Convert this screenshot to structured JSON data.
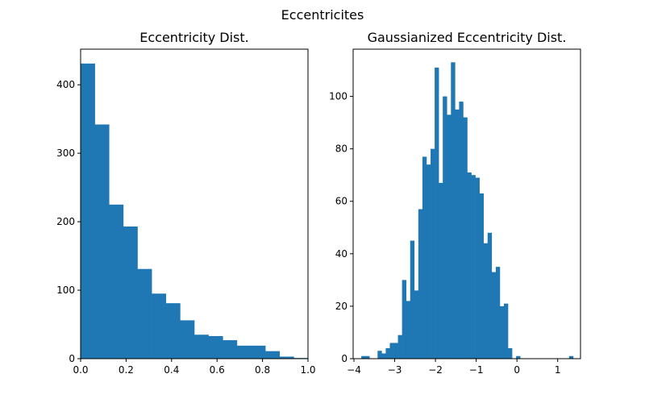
{
  "figure": {
    "suptitle": "Eccentricites"
  },
  "colors": {
    "bar": "#1f77b4",
    "axis": "#000000",
    "background": "#ffffff"
  },
  "chart_data": [
    {
      "type": "bar",
      "title": "Eccentricity Dist.",
      "xlabel": "",
      "ylabel": "",
      "xlim": [
        0.0,
        1.0
      ],
      "ylim": [
        0,
        452
      ],
      "xticks": [
        0.0,
        0.2,
        0.4,
        0.6,
        0.8,
        1.0
      ],
      "xtick_labels": [
        "0.0",
        "0.2",
        "0.4",
        "0.6",
        "0.8",
        "1.0"
      ],
      "yticks": [
        0,
        100,
        200,
        300,
        400
      ],
      "ytick_labels": [
        "0",
        "100",
        "200",
        "300",
        "400"
      ],
      "bin_edges": [
        0.0,
        0.0625,
        0.125,
        0.1875,
        0.25,
        0.3125,
        0.375,
        0.4375,
        0.5,
        0.5625,
        0.625,
        0.6875,
        0.75,
        0.8125,
        0.875,
        0.9375,
        1.0
      ],
      "values": [
        431,
        342,
        225,
        193,
        131,
        95,
        81,
        56,
        35,
        33,
        27,
        19,
        19,
        11,
        3,
        1
      ],
      "grid": false
    },
    {
      "type": "bar",
      "title": "Gaussianized Eccentricity Dist.",
      "xlabel": "",
      "ylabel": "",
      "xlim": [
        -4.02,
        1.56
      ],
      "ylim": [
        0,
        118
      ],
      "xticks": [
        -4,
        -3,
        -2,
        -1,
        0,
        1
      ],
      "xtick_labels": [
        "−4",
        "−3",
        "−2",
        "−1",
        "0",
        "1"
      ],
      "yticks": [
        0,
        20,
        40,
        60,
        80,
        100
      ],
      "ytick_labels": [
        "0",
        "20",
        "40",
        "60",
        "80",
        "100"
      ],
      "bin_edges": [
        -3.82,
        -3.72,
        -3.62,
        -3.52,
        -3.42,
        -3.32,
        -3.22,
        -3.12,
        -3.02,
        -2.92,
        -2.82,
        -2.72,
        -2.62,
        -2.52,
        -2.42,
        -2.32,
        -2.22,
        -2.12,
        -2.02,
        -1.92,
        -1.82,
        -1.72,
        -1.62,
        -1.52,
        -1.42,
        -1.32,
        -1.22,
        -1.12,
        -1.02,
        -0.92,
        -0.82,
        -0.72,
        -0.62,
        -0.52,
        -0.42,
        -0.32,
        -0.22,
        -0.12,
        -0.02,
        0.08,
        0.18,
        0.28,
        0.38,
        0.48,
        0.58,
        0.68,
        0.78,
        0.88,
        0.98,
        1.08,
        1.18,
        1.28,
        1.38
      ],
      "values": [
        1,
        1,
        0,
        0,
        3,
        2,
        4,
        6,
        6,
        9,
        30,
        22,
        45,
        26,
        57,
        77,
        74,
        80,
        111,
        67,
        100,
        93,
        113,
        95,
        98,
        92,
        71,
        70,
        69,
        63,
        44,
        48,
        33,
        35,
        20,
        21,
        4,
        0,
        1,
        0,
        0,
        0,
        0,
        0,
        0,
        0,
        0,
        0,
        0,
        0,
        0,
        1
      ],
      "grid": false
    }
  ]
}
